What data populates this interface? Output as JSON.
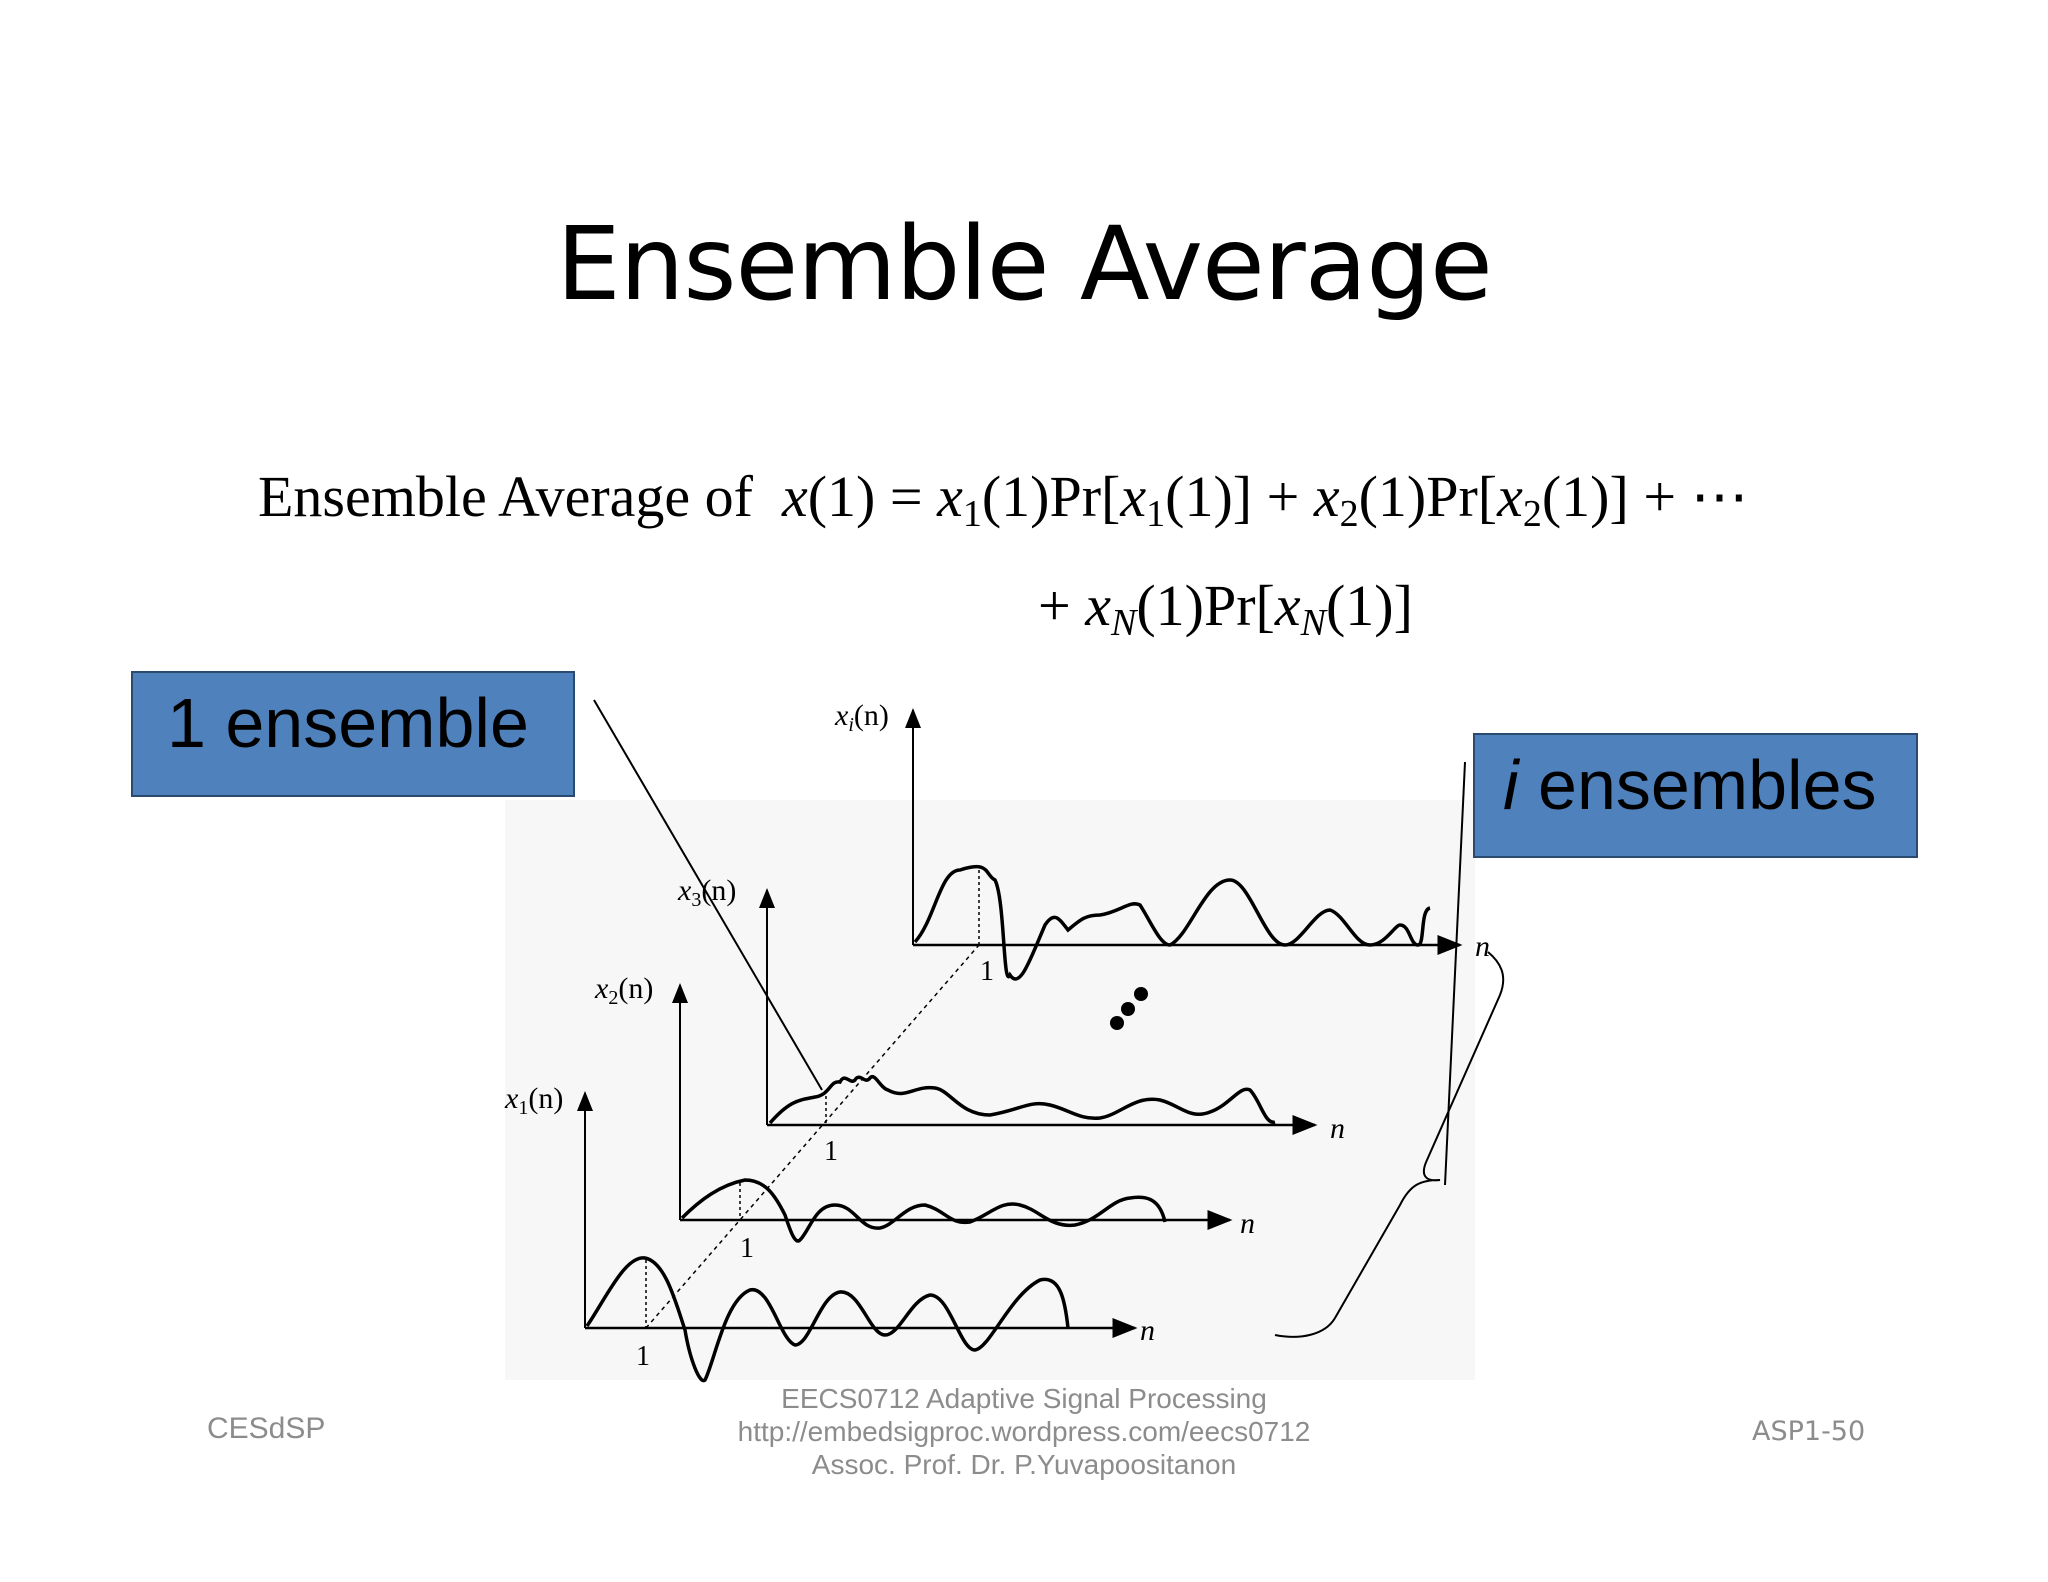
{
  "title": "Ensemble Average",
  "formula": {
    "lhs_text": "Ensemble Average of",
    "lhs_var": "x",
    "arg": "(1)",
    "equals": "=",
    "pr": "Pr",
    "plus": "+",
    "ellipsis": "⋯",
    "sub1": "1",
    "sub2": "2",
    "subN": "N"
  },
  "callouts": {
    "one_ensemble": "1 ensemble",
    "i_italic": "i",
    "ensembles": " ensembles"
  },
  "diagram": {
    "axis_labels": {
      "xi": "x",
      "xi_sub": "i",
      "x3": "x",
      "x3_sub": "3",
      "x2": "x",
      "x2_sub": "2",
      "x1": "x",
      "x1_sub": "1",
      "arg": "(n)",
      "n": "n"
    },
    "tick_one": "1"
  },
  "footer": {
    "left": "CESdSP",
    "center_line1": "EECS0712 Adaptive Signal Processing",
    "center_line2": "http://embedsigproc.wordpress.com/eecs0712",
    "center_line3": "Assoc. Prof. Dr. P.Yuvapoositanon",
    "right": "ASP1-50"
  }
}
